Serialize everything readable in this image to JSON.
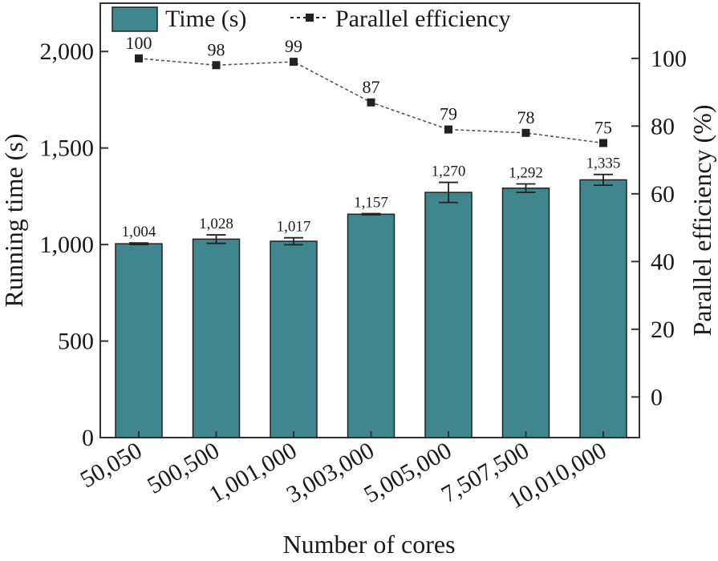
{
  "chart_data": {
    "type": "bar",
    "categories": [
      "50,050",
      "500,500",
      "1,001,000",
      "3,003,000",
      "5,005,000",
      "7,507,500",
      "10,010,000"
    ],
    "series": [
      {
        "name": "Time (s)",
        "type": "bar",
        "axis": "left",
        "values": [
          1004,
          1028,
          1017,
          1157,
          1270,
          1292,
          1335
        ],
        "value_labels": [
          "1,004",
          "1,028",
          "1,017",
          "1,157",
          "1,270",
          "1,292",
          "1,335"
        ],
        "error": [
          4,
          22,
          18,
          3,
          52,
          22,
          28
        ],
        "color": "#3f868f"
      },
      {
        "name": "Parallel efficiency",
        "type": "line",
        "axis": "right",
        "values": [
          100,
          98,
          99,
          87,
          79,
          78,
          75
        ],
        "value_labels": [
          "100",
          "98",
          "99",
          "87",
          "79",
          "78",
          "75"
        ],
        "color": "#222222",
        "line_style": "dashed",
        "marker": "square"
      }
    ],
    "xlabel": "Number of cores",
    "ylabel": "Running time (s)",
    "y2label": "Parallel efficiency (%)",
    "ylim": [
      0,
      2250
    ],
    "y2lim": [
      -12,
      116.3
    ],
    "yticks": [
      0,
      500,
      1000,
      1500,
      2000
    ],
    "ytick_labels": [
      "0",
      "500",
      "1,000",
      "1,500",
      "2,000"
    ],
    "y2ticks": [
      0,
      20,
      40,
      60,
      80,
      100
    ],
    "y2tick_labels": [
      "0",
      "20",
      "40",
      "60",
      "80",
      "100"
    ],
    "legend_position": "top",
    "grid": false
  }
}
